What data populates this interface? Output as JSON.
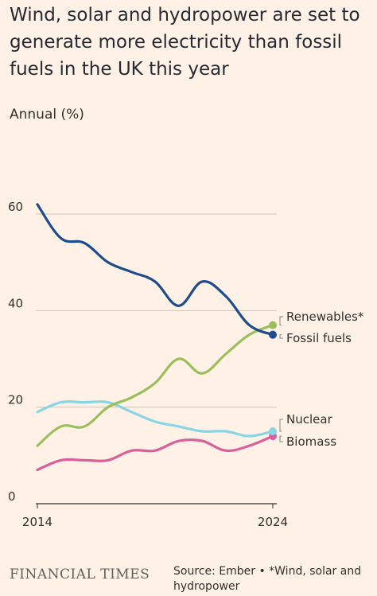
{
  "header": {
    "title": "Wind, solar and hydropower are set to generate more electricity than fossil fuels in the UK this year",
    "subtitle": "Annual (%)"
  },
  "footer": {
    "brand": "FINANCIAL TIMES",
    "source": "Source: Ember • *Wind, solar and hydropower"
  },
  "chart_data": {
    "type": "line",
    "title": "Wind, solar and hydropower are set to generate more electricity than fossil fuels in the UK this year",
    "ylabel": "Annual (%)",
    "xlim": [
      2014,
      2024
    ],
    "ylim": [
      0,
      60
    ],
    "x_ticks": [
      "2014",
      "2024"
    ],
    "y_ticks": [
      "0",
      "20",
      "40",
      "60"
    ],
    "grid": true,
    "x": [
      2014,
      2015,
      2016,
      2017,
      2018,
      2019,
      2020,
      2021,
      2022,
      2023,
      2024
    ],
    "series": [
      {
        "name": "Fossil fuels",
        "color": "#1f4b8f",
        "values": [
          62,
          55,
          54,
          50,
          48,
          46,
          41,
          46,
          43,
          37,
          35
        ]
      },
      {
        "name": "Renewables*",
        "color": "#9cbf5d",
        "values": [
          12,
          16,
          16,
          20,
          22,
          25,
          30,
          27,
          31,
          35,
          37
        ]
      },
      {
        "name": "Nuclear",
        "color": "#88d5e3",
        "values": [
          19,
          21,
          21,
          21,
          19,
          17,
          16,
          15,
          15,
          14,
          15
        ]
      },
      {
        "name": "Biomass",
        "color": "#d9609a",
        "values": [
          7,
          9,
          9,
          9,
          11,
          11,
          13,
          13,
          11,
          12,
          14
        ]
      }
    ]
  }
}
